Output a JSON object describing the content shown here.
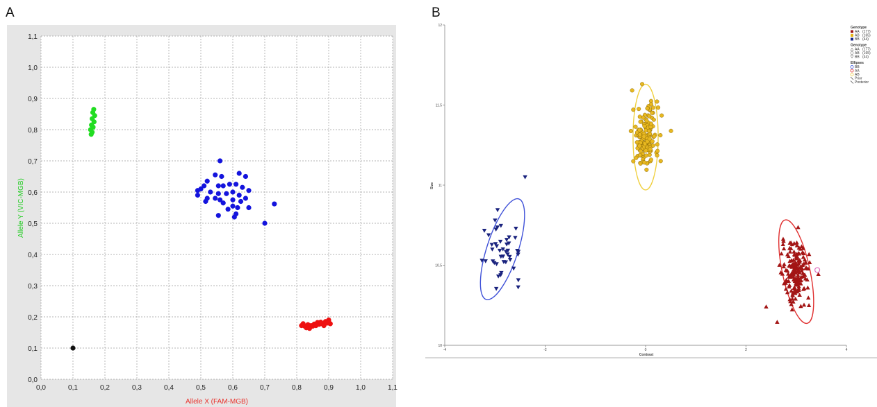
{
  "panels": {
    "a": "A",
    "b": "B"
  },
  "chart_data": [
    {
      "type": "scatter",
      "panel": "A",
      "title": "",
      "xlabel": "Allele X (FAM-MGB)",
      "ylabel": "Allele Y (VIC-MGB)",
      "xlim": [
        0,
        1.1
      ],
      "ylim": [
        0,
        1.1
      ],
      "xticks": [
        "0,0",
        "0,1",
        "0,2",
        "0,3",
        "0,4",
        "0,5",
        "0,6",
        "0,7",
        "0,8",
        "0,9",
        "1,0",
        "1,1"
      ],
      "yticks": [
        "0,0",
        "0,1",
        "0,2",
        "0,3",
        "0,4",
        "0,5",
        "0,6",
        "0,7",
        "0,8",
        "0,9",
        "1,0",
        "1,1"
      ],
      "grid": true,
      "colors": {
        "xlabel": "#e8312b",
        "ylabel": "#22cc22",
        "plot_bg": "#ffffff",
        "frame_bg": "#e6e6e6"
      },
      "series": [
        {
          "color": "#22dd22",
          "points": [
            [
              0.165,
              0.865
            ],
            [
              0.162,
              0.855
            ],
            [
              0.168,
              0.845
            ],
            [
              0.16,
              0.835
            ],
            [
              0.166,
              0.825
            ],
            [
              0.158,
              0.815
            ],
            [
              0.163,
              0.808
            ],
            [
              0.155,
              0.8
            ],
            [
              0.16,
              0.792
            ],
            [
              0.157,
              0.785
            ]
          ]
        },
        {
          "color": "#1414dd",
          "points": [
            [
              0.56,
              0.7
            ],
            [
              0.545,
              0.655
            ],
            [
              0.565,
              0.65
            ],
            [
              0.62,
              0.66
            ],
            [
              0.64,
              0.65
            ],
            [
              0.52,
              0.635
            ],
            [
              0.59,
              0.625
            ],
            [
              0.61,
              0.625
            ],
            [
              0.57,
              0.62
            ],
            [
              0.51,
              0.62
            ],
            [
              0.5,
              0.61
            ],
            [
              0.555,
              0.62
            ],
            [
              0.63,
              0.615
            ],
            [
              0.49,
              0.605
            ],
            [
              0.53,
              0.6
            ],
            [
              0.6,
              0.6
            ],
            [
              0.65,
              0.605
            ],
            [
              0.555,
              0.595
            ],
            [
              0.58,
              0.595
            ],
            [
              0.62,
              0.59
            ],
            [
              0.64,
              0.58
            ],
            [
              0.49,
              0.59
            ],
            [
              0.545,
              0.58
            ],
            [
              0.6,
              0.575
            ],
            [
              0.56,
              0.575
            ],
            [
              0.625,
              0.57
            ],
            [
              0.52,
              0.58
            ],
            [
              0.515,
              0.57
            ],
            [
              0.57,
              0.565
            ],
            [
              0.6,
              0.555
            ],
            [
              0.615,
              0.55
            ],
            [
              0.65,
              0.55
            ],
            [
              0.585,
              0.545
            ],
            [
              0.61,
              0.53
            ],
            [
              0.605,
              0.52
            ],
            [
              0.555,
              0.525
            ],
            [
              0.73,
              0.562
            ],
            [
              0.7,
              0.5
            ]
          ]
        },
        {
          "color": "#ee1111",
          "points": [
            [
              0.82,
              0.178
            ],
            [
              0.825,
              0.17
            ],
            [
              0.83,
              0.165
            ],
            [
              0.835,
              0.175
            ],
            [
              0.84,
              0.168
            ],
            [
              0.845,
              0.172
            ],
            [
              0.85,
              0.17
            ],
            [
              0.855,
              0.177
            ],
            [
              0.86,
              0.172
            ],
            [
              0.865,
              0.182
            ],
            [
              0.87,
              0.176
            ],
            [
              0.875,
              0.183
            ],
            [
              0.88,
              0.178
            ],
            [
              0.885,
              0.172
            ],
            [
              0.89,
              0.185
            ],
            [
              0.895,
              0.18
            ],
            [
              0.9,
              0.19
            ],
            [
              0.905,
              0.178
            ],
            [
              0.815,
              0.172
            ],
            [
              0.84,
              0.163
            ]
          ]
        },
        {
          "color": "#111111",
          "points": [
            [
              0.1,
              0.1
            ]
          ]
        }
      ]
    },
    {
      "type": "scatter",
      "panel": "B",
      "title": "",
      "xlabel": "Contrast",
      "ylabel": "Size",
      "xlim": [
        -4,
        4
      ],
      "ylim": [
        10,
        12
      ],
      "xticks": [
        "-4",
        "-2",
        "0",
        "2",
        "4"
      ],
      "yticks": [
        "10",
        "10.5",
        "11",
        "11.5",
        "12"
      ],
      "grid": false,
      "legend_position": "top-right",
      "legend": {
        "sections": [
          {
            "title": "Genotype",
            "items": [
              {
                "label": "AA",
                "count": "(177)",
                "color": "#a01818",
                "shape": "square"
              },
              {
                "label": "AB",
                "count": "(165)",
                "color": "#e6b418",
                "shape": "square"
              },
              {
                "label": "BB",
                "count": "(44)",
                "color": "#1a2a8a",
                "shape": "square"
              }
            ]
          },
          {
            "title": "Genotype",
            "items": [
              {
                "label": "AA",
                "count": "(177)",
                "shape": "triangle-up"
              },
              {
                "label": "AB",
                "count": "(165)",
                "shape": "circle"
              },
              {
                "label": "BB",
                "count": "(44)",
                "shape": "triangle-down"
              }
            ]
          },
          {
            "title": "Ellipses",
            "items": [
              {
                "label": "BB",
                "color": "#3355dd",
                "shape": "ring"
              },
              {
                "label": "AA",
                "color": "#dd2222",
                "shape": "ring"
              },
              {
                "label": "AB",
                "color": "#f0d040",
                "shape": "ring"
              },
              {
                "label": "Prior",
                "shape": "line"
              },
              {
                "label": "Posterior",
                "shape": "line"
              }
            ]
          }
        ]
      },
      "clusters": [
        {
          "genotype": "AB",
          "marker": "circle",
          "color": "#e8b820",
          "center": [
            0.0,
            11.3
          ],
          "sd": [
            0.13,
            0.1
          ],
          "n": 165,
          "ellipse": {
            "color": "#f0d040",
            "rx": 0.5,
            "ry": 0.33
          }
        },
        {
          "genotype": "BB",
          "marker": "triangle-down",
          "color": "#1a237e",
          "center": [
            -2.85,
            10.6
          ],
          "sd": [
            0.18,
            0.1
          ],
          "n": 44,
          "ellipse": {
            "color": "#3f51d8",
            "rx": 0.62,
            "ry": 0.33
          }
        },
        {
          "genotype": "AA",
          "marker": "triangle-up",
          "color": "#a31515",
          "center": [
            3.0,
            10.46
          ],
          "sd": [
            0.14,
            0.09
          ],
          "n": 177,
          "ellipse": {
            "color": "#e03030",
            "rx": 0.55,
            "ry": 0.33
          }
        }
      ],
      "extra_points": [
        {
          "genotype": "BB",
          "marker": "triangle-down",
          "color": "#1a237e",
          "x": -2.4,
          "y": 11.05
        }
      ],
      "highlight": {
        "x": 3.42,
        "y": 10.47,
        "color": "#e070c0"
      }
    }
  ]
}
